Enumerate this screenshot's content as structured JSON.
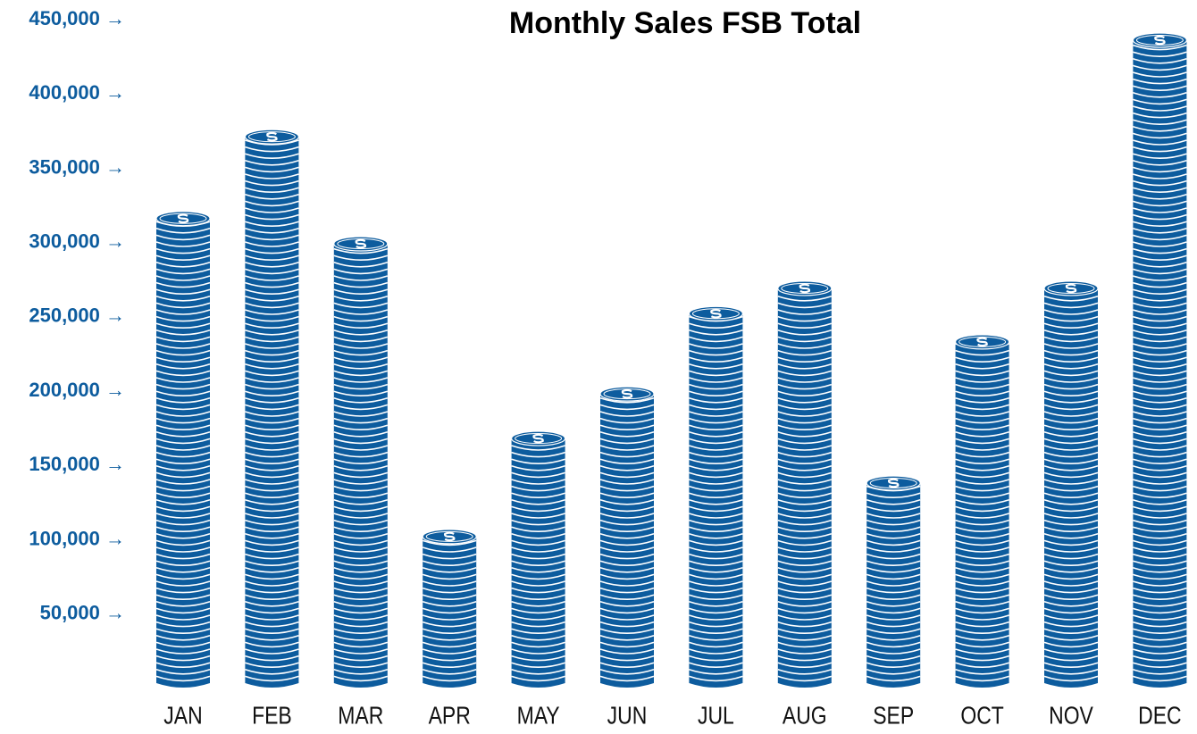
{
  "chart_data": {
    "type": "coin-stack",
    "title": "Monthly Sales FSB Total",
    "categories": [
      "JAN",
      "FEB",
      "MAR",
      "APR",
      "MAY",
      "JUN",
      "JUL",
      "AUG",
      "SEP",
      "OCT",
      "NOV",
      "DEC"
    ],
    "values": [
      321000,
      376000,
      304000,
      107000,
      173000,
      203000,
      257000,
      274000,
      143000,
      238000,
      274000,
      441000
    ],
    "color": "#0d5c9e",
    "ylim": [
      0,
      460000
    ],
    "yticks": [
      {
        "value": 50000,
        "label": "50,000 →"
      },
      {
        "value": 100000,
        "label": "100,000 →"
      },
      {
        "value": 150000,
        "label": "150,000 →"
      },
      {
        "value": 200000,
        "label": "200,000 →"
      },
      {
        "value": 250000,
        "label": "250,000 →"
      },
      {
        "value": 300000,
        "label": "300,000 →"
      },
      {
        "value": 350000,
        "label": "350,000 →"
      },
      {
        "value": 400000,
        "label": "400,000 →"
      },
      {
        "value": 450000,
        "label": "450,000 →"
      }
    ],
    "grid": false
  }
}
